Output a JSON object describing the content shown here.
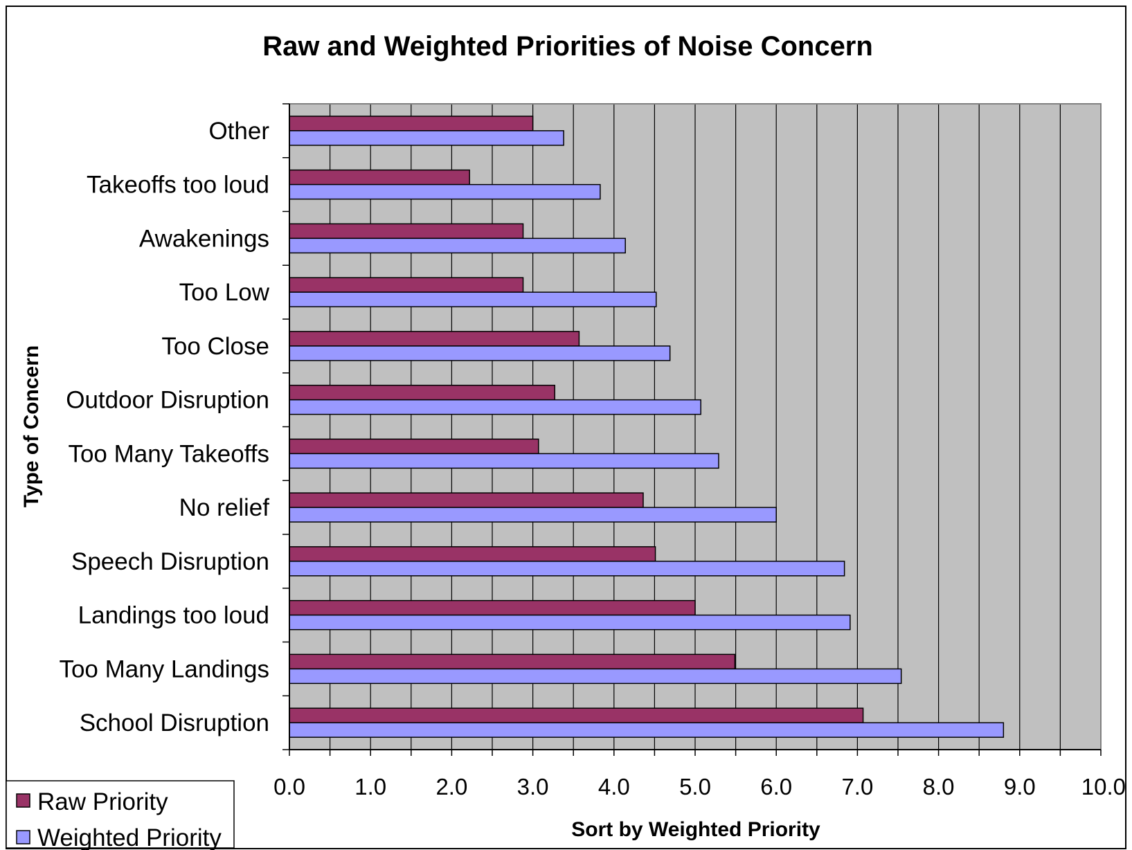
{
  "chart_data": {
    "type": "bar",
    "orientation": "horizontal",
    "title": "Raw and Weighted Priorities of Noise Concern",
    "xlabel": "Sort by Weighted Priority",
    "ylabel": "Type of Concern",
    "xlim": [
      0,
      10
    ],
    "x_ticks": [
      "0.0",
      "1.0",
      "2.0",
      "3.0",
      "4.0",
      "5.0",
      "6.0",
      "7.0",
      "8.0",
      "9.0",
      "10.0"
    ],
    "grid": "vertical every 0.5",
    "legend_position": "bottom-left",
    "categories": [
      "Other",
      "Takeoffs too loud",
      "Awakenings",
      "Too Low",
      "Too Close",
      "Outdoor Disruption",
      "Too Many Takeoffs",
      "No relief",
      "Speech Disruption",
      "Landings too loud",
      "Too Many Landings",
      "School Disruption"
    ],
    "series": [
      {
        "name": "Raw Priority",
        "color": "#993366",
        "values": [
          3.0,
          2.22,
          2.88,
          2.88,
          3.57,
          3.27,
          3.07,
          4.36,
          4.51,
          5.0,
          5.49,
          7.07
        ]
      },
      {
        "name": "Weighted Priority",
        "color": "#9999ff",
        "values": [
          3.38,
          3.83,
          4.14,
          4.52,
          4.69,
          5.07,
          5.29,
          6.0,
          6.84,
          6.91,
          7.54,
          8.8
        ]
      }
    ]
  }
}
